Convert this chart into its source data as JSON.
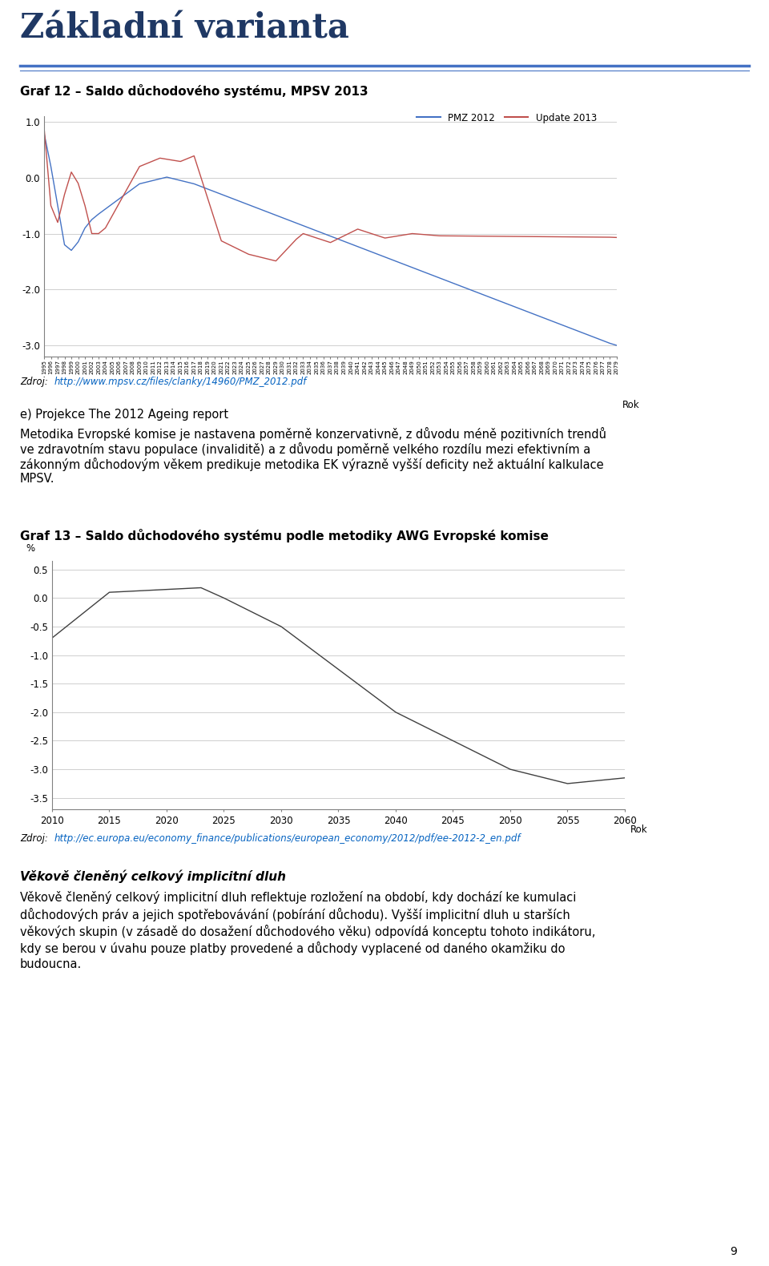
{
  "title_main": "Základní varianta",
  "chart1_title": "Graf 12 – Saldo důchodového systému, MPSV 2013",
  "chart1_xlabel": "Rok",
  "chart1_ylim": [
    -3.2,
    1.1
  ],
  "chart1_yticks": [
    1.0,
    0.0,
    -1.0,
    -2.0,
    -3.0
  ],
  "chart1_source_plain": "Zdroj: ",
  "chart1_source_url": "http://www.mpsv.cz/files/clanky/14960/PMZ_2012.pdf",
  "chart1_legend": [
    "PMZ 2012",
    "Update 2013"
  ],
  "chart1_colors": [
    "#4472C4",
    "#C0504D"
  ],
  "chart2_title": "Graf 13 – Saldo důchodového systému podle metodiky AWG Evropské komise",
  "chart2_xlabel": "Rok",
  "chart2_ylabel": "%",
  "chart2_ylim": [
    -3.7,
    0.65
  ],
  "chart2_yticks": [
    0.5,
    0.0,
    -0.5,
    -1.0,
    -1.5,
    -2.0,
    -2.5,
    -3.0,
    -3.5
  ],
  "chart2_source_plain": "Zdroj: ",
  "chart2_source_url": "http://ec.europa.eu/economy_finance/publications/european_economy/2012/pdf/ee-2012-2_en.pdf",
  "chart2_color": "#404040",
  "para_intro": "e) Projekce The 2012 Ageing report",
  "para_body": "Metodika Evropské komise je nastavena poměrně konzervativně, z důvodu méně pozitivních trendů ve zdravotním stavu populace (invaliditě) a z důvodu poměrně velkého rozdílu mezi efektivním a zákonným důchodovým věkem predikuje metodika EK výrazně vyšší deficity než aktuální kalkulace MPSV.",
  "text_block_title": "Věkově členěný celkový implicitní dluh",
  "text_block_body": "Věkově členěný celkový implicitní dluh reflektuje rozložení na období, kdy dochází ke kumulaci důchodových práv a jejich spotřebovávání (pobírání důchodu). Vyšší implicitní dluh u starších věkových skupin (v zásadě do dosažení důchodového věku) odpovídá konceptu tohoto indikátoru, kdy se berou v úhavu pouze platby provedené a důchody vyplacené od daného okamžiku do budoucna.",
  "text_block_body2": "Věkově členěný celkový implicitní dluh reflektuje rozložení na období, kdy dochází ke kumulaci důchodových práv a jejich spotřebovávání (pobírání důchodu). Vyšší implicitní dluh u starších věkových skupin (v zásadě do dosažení důchodového věku) odpovídá konceptu tohoto indikátoru, kdy se berou v úhavu pouze platby provedené a důchody vyplacené od daného okamžiku do budoucna.",
  "page_number": "9",
  "separator_color": "#4472C4",
  "background_color": "#FFFFFF",
  "grid_color": "#C8C8C8",
  "spine_color": "#808080"
}
